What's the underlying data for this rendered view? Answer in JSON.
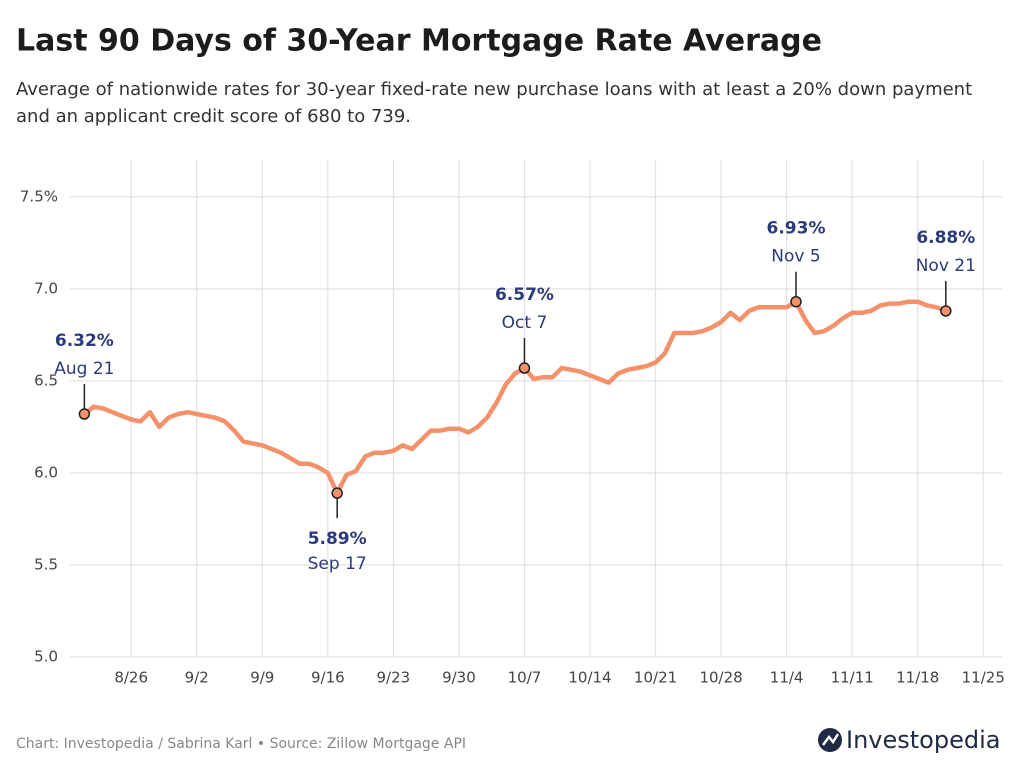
{
  "chart_data": {
    "type": "line",
    "title": "Last 90 Days of 30-Year Mortgage Rate Average",
    "subtitle": "Average of nationwide rates for 30-year fixed-rate new purchase loans with at least a 20% down payment and an applicant credit score of 680 to 739.",
    "x": [
      "8/21",
      "8/22",
      "8/23",
      "8/24",
      "8/25",
      "8/26",
      "8/27",
      "8/28",
      "8/29",
      "8/30",
      "8/31",
      "9/1",
      "9/2",
      "9/3",
      "9/4",
      "9/5",
      "9/6",
      "9/7",
      "9/8",
      "9/9",
      "9/10",
      "9/11",
      "9/12",
      "9/13",
      "9/14",
      "9/15",
      "9/16",
      "9/17",
      "9/18",
      "9/19",
      "9/20",
      "9/21",
      "9/22",
      "9/23",
      "9/24",
      "9/25",
      "9/26",
      "9/27",
      "9/28",
      "9/29",
      "9/30",
      "10/1",
      "10/2",
      "10/3",
      "10/4",
      "10/5",
      "10/6",
      "10/7",
      "10/8",
      "10/9",
      "10/10",
      "10/11",
      "10/12",
      "10/13",
      "10/14",
      "10/15",
      "10/16",
      "10/17",
      "10/18",
      "10/19",
      "10/20",
      "10/21",
      "10/22",
      "10/23",
      "10/24",
      "10/25",
      "10/26",
      "10/27",
      "10/28",
      "10/29",
      "10/30",
      "10/31",
      "11/1",
      "11/2",
      "11/3",
      "11/4",
      "11/5",
      "11/6",
      "11/7",
      "11/8",
      "11/9",
      "11/10",
      "11/11",
      "11/12",
      "11/13",
      "11/14",
      "11/15",
      "11/16",
      "11/17",
      "11/18",
      "11/19",
      "11/20",
      "11/21"
    ],
    "values": [
      6.32,
      6.36,
      6.35,
      6.33,
      6.31,
      6.29,
      6.28,
      6.33,
      6.25,
      6.3,
      6.32,
      6.33,
      6.32,
      6.31,
      6.3,
      6.28,
      6.23,
      6.17,
      6.16,
      6.15,
      6.13,
      6.11,
      6.08,
      6.05,
      6.05,
      6.03,
      6.0,
      5.89,
      5.99,
      6.01,
      6.09,
      6.11,
      6.11,
      6.12,
      6.15,
      6.13,
      6.18,
      6.23,
      6.23,
      6.24,
      6.24,
      6.22,
      6.25,
      6.3,
      6.38,
      6.48,
      6.54,
      6.57,
      6.51,
      6.52,
      6.52,
      6.57,
      6.56,
      6.55,
      6.53,
      6.51,
      6.49,
      6.54,
      6.56,
      6.57,
      6.58,
      6.6,
      6.65,
      6.76,
      6.76,
      6.76,
      6.77,
      6.79,
      6.82,
      6.87,
      6.83,
      6.88,
      6.9,
      6.9,
      6.9,
      6.9,
      6.93,
      6.83,
      6.76,
      6.77,
      6.8,
      6.84,
      6.87,
      6.87,
      6.88,
      6.91,
      6.92,
      6.92,
      6.93,
      6.93,
      6.91,
      6.9,
      6.88
    ],
    "color": "#f4916b",
    "xlim": [
      "8/20",
      "11/27"
    ],
    "xticks": [
      "8/26",
      "9/2",
      "9/9",
      "9/16",
      "9/23",
      "9/30",
      "10/7",
      "10/14",
      "10/21",
      "10/28",
      "11/4",
      "11/11",
      "11/18",
      "11/25"
    ],
    "ylim": [
      5,
      7.7
    ],
    "yticks": [
      {
        "value": 5,
        "label": "5.0"
      },
      5.5,
      {
        "value": 6,
        "label": "6.0"
      },
      6.5,
      {
        "value": 7,
        "label": "7.0"
      },
      {
        "value": 7.5,
        "label": "7.5%"
      }
    ],
    "grid": true,
    "annotations": [
      {
        "x": "8/21",
        "y": 6.32,
        "value_label": "6.32%",
        "date": "Aug 21",
        "side": "above"
      },
      {
        "x": "9/17",
        "y": 5.89,
        "value_label": "5.89%",
        "date": "Sep 17",
        "side": "below"
      },
      {
        "x": "10/7",
        "y": 6.57,
        "value_label": "6.57%",
        "date": "Oct 7",
        "side": "above"
      },
      {
        "x": "11/5",
        "y": 6.93,
        "value_label": "6.93%",
        "date": "Nov 5",
        "side": "above"
      },
      {
        "x": "11/21",
        "y": 6.88,
        "value_label": "6.88%",
        "date": "Nov 21",
        "side": "above"
      }
    ]
  },
  "footer": {
    "credit": "Chart: Investopedia / Sabrina Karl • Source: Zillow Mortgage API",
    "logo": "Investopedia"
  }
}
